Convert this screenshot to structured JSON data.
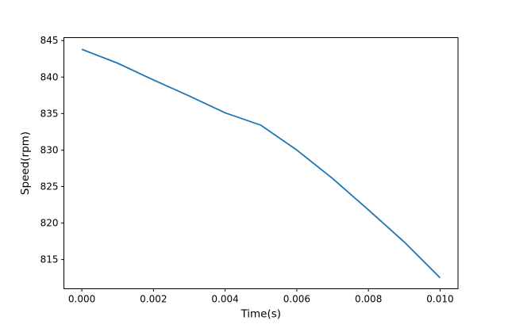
{
  "chart_data": {
    "type": "line",
    "title": "",
    "xlabel": "Time(s)",
    "ylabel": "Speed(rpm)",
    "x": [
      0.0,
      0.001,
      0.002,
      0.003,
      0.004,
      0.005,
      0.006,
      0.007,
      0.008,
      0.009,
      0.01
    ],
    "series": [
      {
        "name": "speed",
        "values": [
          843.8,
          841.9,
          839.6,
          837.4,
          835.1,
          833.4,
          830.0,
          826.1,
          821.8,
          817.4,
          812.5
        ],
        "color": "#1f77b4",
        "linewidth": 1.8
      }
    ],
    "xlim": [
      -0.0005,
      0.0105
    ],
    "ylim": [
      811.0,
      845.4
    ],
    "xticks": {
      "values": [
        0.0,
        0.002,
        0.004,
        0.006,
        0.008,
        0.01
      ],
      "labels": [
        "0.000",
        "0.002",
        "0.004",
        "0.006",
        "0.008",
        "0.010"
      ]
    },
    "yticks": {
      "values": [
        815,
        820,
        825,
        830,
        835,
        840,
        845
      ],
      "labels": [
        "815",
        "820",
        "825",
        "830",
        "835",
        "840",
        "845"
      ]
    },
    "grid": false,
    "legend": null,
    "colors": {
      "line": "#1f77b4",
      "axis": "#000000",
      "background": "#ffffff"
    }
  }
}
